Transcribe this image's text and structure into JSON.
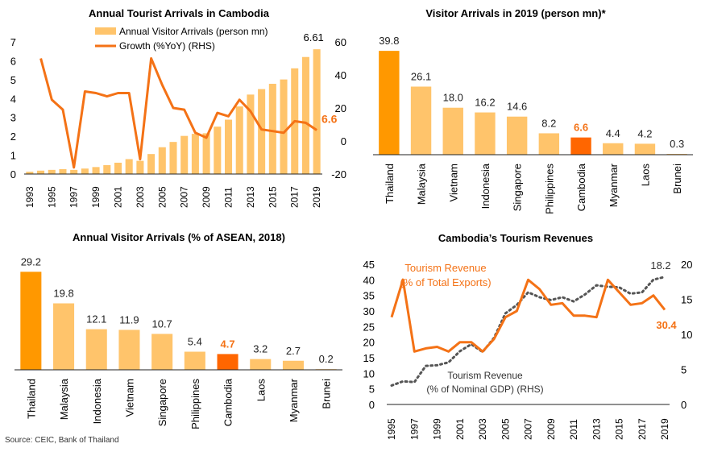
{
  "colors": {
    "bar": "#FFC46B",
    "highlight_bar": "#FF9800",
    "cambodia_bar": "#FF6600",
    "line": "#F47216",
    "dotted": "#555555",
    "axis": "#222222",
    "cambodia_label": "#F47216"
  },
  "source": "Source: CEIC, Bank of Thailand",
  "chart_data": [
    {
      "type": "bar+line",
      "title": "Annual Tourist Arrivals in Cambodia",
      "x": [
        1993,
        1994,
        1995,
        1996,
        1997,
        1998,
        1999,
        2000,
        2001,
        2002,
        2003,
        2004,
        2005,
        2006,
        2007,
        2008,
        2009,
        2010,
        2011,
        2012,
        2013,
        2014,
        2015,
        2016,
        2017,
        2018,
        2019
      ],
      "x_tick_labels": [
        "1993",
        "1995",
        "1997",
        "1999",
        "2001",
        "2003",
        "2005",
        "2007",
        "2009",
        "2011",
        "2013",
        "2015",
        "2017",
        "2019"
      ],
      "series": [
        {
          "name": "Annual Visitor Arrivals (person mn)",
          "kind": "bar",
          "axis": "left",
          "values": [
            0.12,
            0.18,
            0.22,
            0.26,
            0.22,
            0.29,
            0.37,
            0.47,
            0.6,
            0.79,
            0.7,
            1.06,
            1.42,
            1.7,
            2.02,
            2.13,
            2.16,
            2.51,
            2.88,
            3.58,
            4.21,
            4.5,
            4.78,
            5.01,
            5.6,
            6.2,
            6.61
          ]
        },
        {
          "name": "Growth (%YoY) (RHS)",
          "kind": "line",
          "axis": "right",
          "values": [
            null,
            50,
            25,
            19,
            -16,
            30,
            29,
            27,
            29,
            29,
            -11,
            50,
            34,
            20,
            19,
            5,
            2,
            17,
            15,
            25,
            18,
            7,
            6,
            5,
            12,
            11,
            6.6
          ]
        }
      ],
      "ylim_left": [
        0,
        7
      ],
      "yticks_left": [
        0,
        1,
        2,
        3,
        4,
        5,
        6,
        7
      ],
      "ylim_right": [
        -20,
        60
      ],
      "yticks_right": [
        -20,
        0,
        20,
        40,
        60
      ],
      "annotations": [
        {
          "text": "6.61"
        },
        {
          "text": "6.6"
        }
      ],
      "legend_position": "top"
    },
    {
      "type": "bar",
      "title": "Visitor Arrivals in 2019 (person mn)*",
      "categories": [
        "Thailand",
        "Malaysia",
        "Vietnam",
        "Indonesia",
        "Singapore",
        "Philippines",
        "Cambodia",
        "Myanmar",
        "Laos",
        "Brunei"
      ],
      "values": [
        39.8,
        26.1,
        18.0,
        16.2,
        14.6,
        8.2,
        6.6,
        4.4,
        4.2,
        0.3
      ],
      "value_labels": [
        "39.8",
        "26.1",
        "18.0",
        "16.2",
        "14.6",
        "8.2",
        "6.6",
        "4.4",
        "4.2",
        "0.3"
      ],
      "ylim": [
        0,
        42
      ]
    },
    {
      "type": "bar",
      "title": "Annual Visitor Arrivals (% of ASEAN, 2018)",
      "categories": [
        "Thailand",
        "Malaysia",
        "Indonesia",
        "Vietnam",
        "Singapore",
        "Philippines",
        "Cambodia",
        "Laos",
        "Myanmar",
        "Brunei"
      ],
      "values": [
        29.2,
        19.8,
        12.1,
        11.9,
        10.7,
        5.4,
        4.7,
        3.2,
        2.7,
        0.2
      ],
      "value_labels": [
        "29.2",
        "19.8",
        "12.1",
        "11.9",
        "10.7",
        "5.4",
        "4.7",
        "3.2",
        "2.7",
        "0.2"
      ],
      "ylim": [
        0,
        30
      ]
    },
    {
      "type": "line",
      "title": "Cambodia’s Tourism Revenues",
      "x": [
        1995,
        1996,
        1997,
        1998,
        1999,
        2000,
        2001,
        2002,
        2003,
        2004,
        2005,
        2006,
        2007,
        2008,
        2009,
        2010,
        2011,
        2012,
        2013,
        2014,
        2015,
        2016,
        2017,
        2018,
        2019
      ],
      "x_tick_labels": [
        "1995",
        "1997",
        "1999",
        "2001",
        "2003",
        "2005",
        "2007",
        "2009",
        "2011",
        "2013",
        "2015",
        "2017",
        "2019"
      ],
      "series": [
        {
          "name": "Tourism Revenue (% of Total Exports)",
          "label_lines": [
            "Tourism Revenue",
            "(% of Total Exports)"
          ],
          "axis": "left",
          "style": "solid",
          "values": [
            28,
            40,
            17,
            18,
            18.5,
            17,
            20,
            20,
            17,
            21,
            28,
            30,
            40,
            37,
            32,
            32.5,
            28.5,
            28.5,
            28,
            40,
            36,
            32,
            32.5,
            35,
            30.4
          ]
        },
        {
          "name": "Tourism Revenue (% of Nominal GDP) (RHS)",
          "label_lines": [
            "Tourism Revenue",
            "(% of Nominal GDP) (RHS)"
          ],
          "axis": "right",
          "style": "dotted",
          "values": [
            2.7,
            3.3,
            3.2,
            5.5,
            5.6,
            6,
            7.6,
            8.6,
            7.5,
            9.5,
            13,
            14.2,
            16,
            15.3,
            14.9,
            15.3,
            14.7,
            15.7,
            17,
            16.8,
            16.7,
            15.8,
            16,
            17.8,
            18.2
          ]
        }
      ],
      "ylim_left": [
        0,
        45
      ],
      "yticks_left": [
        0,
        5,
        10,
        15,
        20,
        25,
        30,
        35,
        40,
        45
      ],
      "ylim_right": [
        0,
        20
      ],
      "yticks_right": [
        0,
        5,
        10,
        15,
        20
      ],
      "annotations": [
        {
          "text": "18.2"
        },
        {
          "text": "30.4"
        }
      ]
    }
  ]
}
